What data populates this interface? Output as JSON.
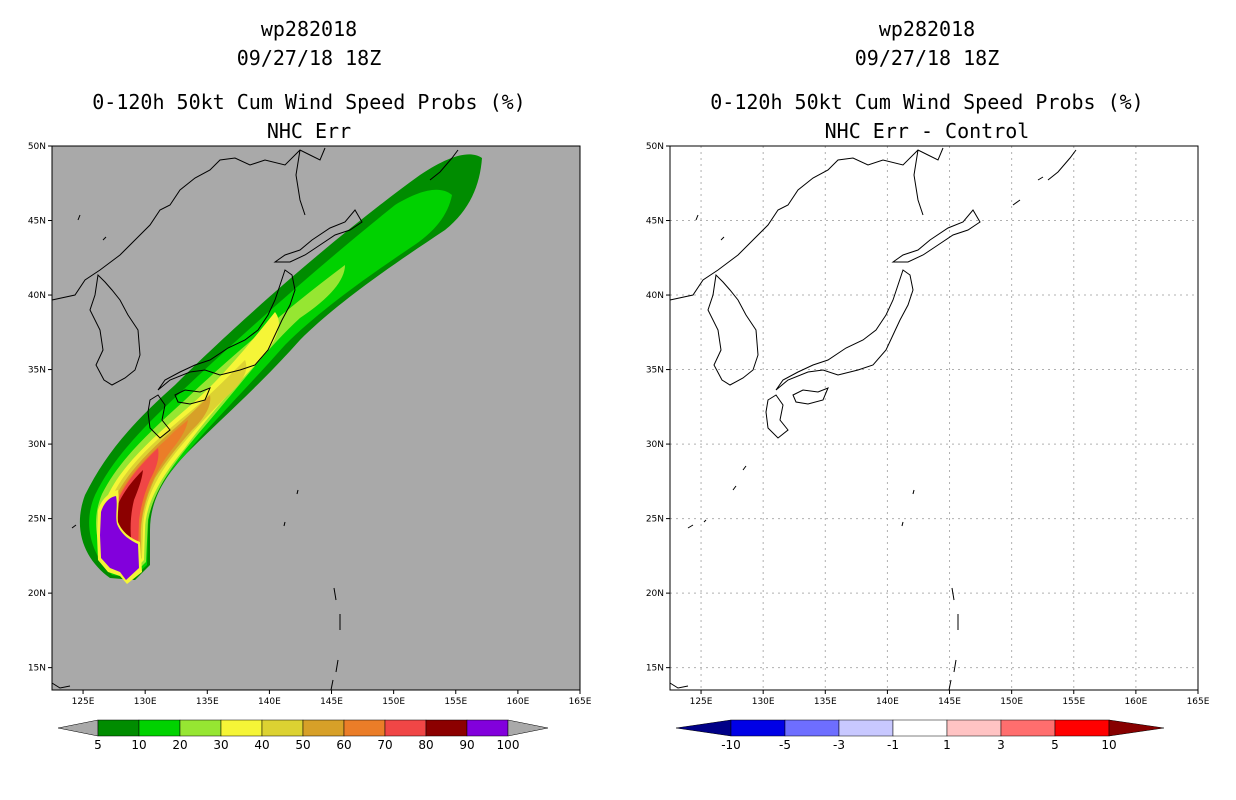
{
  "panels": [
    {
      "id": "left",
      "title_storm": "wp282018",
      "title_date": "09/27/18 18Z",
      "title_product": "0-120h 50kt Cum Wind Speed Probs (%)",
      "title_sub": "NHC Err",
      "background": "#a9a9a9",
      "colorbar": {
        "labels": [
          "5",
          "10",
          "20",
          "30",
          "40",
          "50",
          "60",
          "70",
          "80",
          "90",
          "100"
        ],
        "colors": [
          "#008c00",
          "#00d200",
          "#96e632",
          "#f5f537",
          "#dcd232",
          "#d7a028",
          "#eb7d28",
          "#f04646",
          "#8c0000",
          "#8200dc"
        ],
        "end_color": "#a9a9a9"
      }
    },
    {
      "id": "right",
      "title_storm": "wp282018",
      "title_date": "09/27/18 18Z",
      "title_product": "0-120h 50kt Cum Wind Speed Probs (%)",
      "title_sub": "NHC Err - Control",
      "background": "#ffffff",
      "colorbar": {
        "labels": [
          "-10",
          "-5",
          "-3",
          "-1",
          "1",
          "3",
          "5",
          "10"
        ],
        "colors": [
          "#0000e6",
          "#6e6eff",
          "#c8c8ff",
          "#ffffff",
          "#ffc3c3",
          "#ff6e6e",
          "#ff0000"
        ],
        "end_left": "#000087",
        "end_right": "#870000"
      }
    }
  ],
  "axes": {
    "lon_labels": [
      "125E",
      "130E",
      "135E",
      "140E",
      "145E",
      "150E",
      "155E",
      "160E",
      "165E"
    ],
    "lat_labels": [
      "15N",
      "20N",
      "25N",
      "30N",
      "35N",
      "40N",
      "45N",
      "50N"
    ]
  }
}
